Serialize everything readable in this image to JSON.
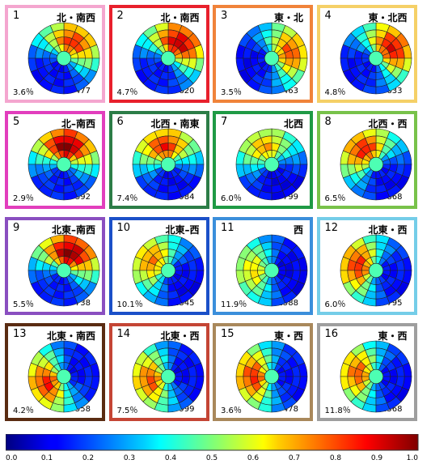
{
  "chart_data": {
    "type": "heatmap",
    "layout": "4x4 grid of polar disk heatmaps",
    "panels": [
      {
        "index": "1",
        "label": "北・南西",
        "percent": "3.6％",
        "count": "477",
        "border_color": "#f4a6cf",
        "hot_angle": 60,
        "spread": 0.85
      },
      {
        "index": "2",
        "label": "北・南西",
        "percent": "4.7％",
        "count": "620",
        "border_color": "#e8202c",
        "hot_angle": 55,
        "spread": 0.95
      },
      {
        "index": "3",
        "label": "東・北",
        "percent": "3.5％",
        "count": "463",
        "border_color": "#f0833a",
        "hot_angle": 20,
        "spread": 0.8
      },
      {
        "index": "4",
        "label": "東・北西",
        "percent": "4.8％",
        "count": "633",
        "border_color": "#f5d067",
        "hot_angle": 35,
        "spread": 0.9
      },
      {
        "index": "5",
        "label": "北–南西",
        "percent": "2.9％",
        "count": "392",
        "border_color": "#e23ebd",
        "hot_angle": 80,
        "spread": 1.0
      },
      {
        "index": "6",
        "label": "北西・南東",
        "percent": "7.4％",
        "count": "984",
        "border_color": "#2c7d47",
        "hot_angle": 100,
        "spread": 0.85
      },
      {
        "index": "7",
        "label": "北西",
        "percent": "6.0％",
        "count": "799",
        "border_color": "#1f9a45",
        "hot_angle": 110,
        "spread": 0.7
      },
      {
        "index": "8",
        "label": "北西・西",
        "percent": "6.5％",
        "count": "868",
        "border_color": "#78c24a",
        "hot_angle": 130,
        "spread": 0.85
      },
      {
        "index": "9",
        "label": "北東–南西",
        "percent": "5.5％",
        "count": "738",
        "border_color": "#8a4fc0",
        "hot_angle": 70,
        "spread": 1.0
      },
      {
        "index": "10",
        "label": "北東–西",
        "percent": "10.1％",
        "count": "1345",
        "border_color": "#1b50c8",
        "hot_angle": 150,
        "spread": 0.75
      },
      {
        "index": "11",
        "label": "西",
        "percent": "11.9％",
        "count": "1588",
        "border_color": "#3b8fdb",
        "hot_angle": 180,
        "spread": 0.65
      },
      {
        "index": "12",
        "label": "北東・西",
        "percent": "6.0％",
        "count": "795",
        "border_color": "#74cde8",
        "hot_angle": 165,
        "spread": 0.85
      },
      {
        "index": "13",
        "label": "北東・南西",
        "percent": "4.2％",
        "count": "558",
        "border_color": "#5a2c12",
        "hot_angle": 200,
        "spread": 0.85
      },
      {
        "index": "14",
        "label": "北東・西",
        "percent": "7.5％",
        "count": "999",
        "border_color": "#c44535",
        "hot_angle": 190,
        "spread": 0.8
      },
      {
        "index": "15",
        "label": "東・西",
        "percent": "3.6％",
        "count": "478",
        "border_color": "#a9885b",
        "hot_angle": 180,
        "spread": 0.85
      },
      {
        "index": "16",
        "label": "東・西",
        "percent": "11.8％",
        "count": "1568",
        "border_color": "#9e9e9e",
        "hot_angle": 170,
        "spread": 0.8
      }
    ],
    "colorbar": {
      "colormap": "jet",
      "range": [
        0.0,
        1.0
      ],
      "ticks": [
        "0.0",
        "0.1",
        "0.2",
        "0.3",
        "0.4",
        "0.5",
        "0.6",
        "0.7",
        "0.8",
        "0.9",
        "1.0"
      ]
    }
  }
}
